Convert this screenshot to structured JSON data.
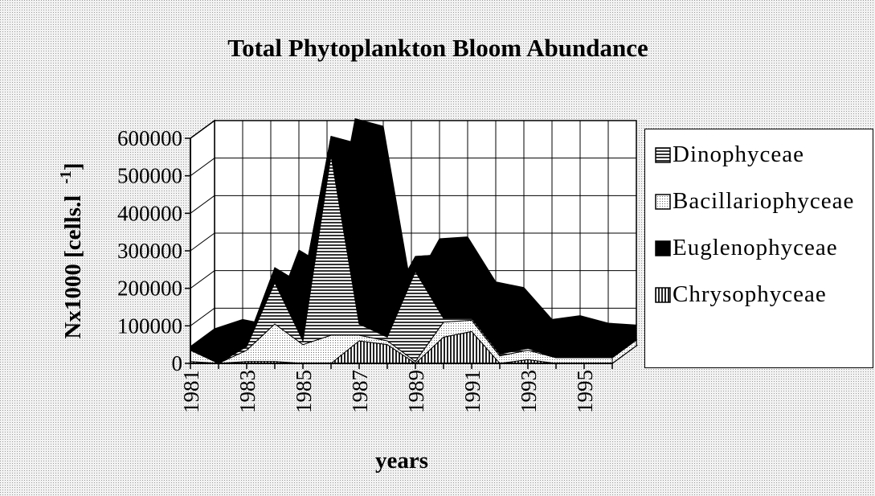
{
  "chart_data": {
    "type": "area3d",
    "stacked": true,
    "title": "Total Phytoplankton Bloom Abundance",
    "x_label": "years",
    "y_label": [
      "Nx1000 [cells.l",
      "-1",
      "]"
    ],
    "categories": [
      "1981",
      null,
      "1983",
      null,
      "1985",
      null,
      "1987",
      null,
      "1989",
      null,
      "1991",
      null,
      "1993",
      null,
      "1995",
      null
    ],
    "series": [
      {
        "name": "Dinophyceae",
        "fill": "horizontal",
        "values": [
          0,
          0,
          10000,
          110000,
          10000,
          480000,
          30000,
          10000,
          240000,
          10000,
          5000,
          5000,
          5000,
          0,
          0,
          0
        ]
      },
      {
        "name": "Bacillariophyceae",
        "fill": "dots",
        "values": [
          30000,
          0,
          30000,
          100000,
          50000,
          75000,
          15000,
          10000,
          5000,
          40000,
          30000,
          20000,
          25000,
          15000,
          15000,
          15000
        ]
      },
      {
        "name": "Euglenophyceae",
        "fill": "solid",
        "values": [
          10000,
          70000,
          10000,
          40000,
          150000,
          50000,
          480000,
          80000,
          40000,
          170000,
          50000,
          130000,
          30000,
          65000,
          45000,
          40000
        ]
      },
      {
        "name": "Chrysophyceae",
        "fill": "vertical",
        "values": [
          5000,
          0,
          5000,
          5000,
          0,
          0,
          60000,
          50000,
          0,
          70000,
          85000,
          0,
          10000,
          0,
          0,
          0
        ]
      }
    ],
    "stack_order": [
      "Chrysophyceae",
      "Bacillariophyceae",
      "Dinophyceae",
      "Euglenophyceae"
    ],
    "ylim": [
      0,
      600000
    ],
    "yticks": [
      0,
      100000,
      200000,
      300000,
      400000,
      500000,
      600000
    ],
    "grid": true
  }
}
